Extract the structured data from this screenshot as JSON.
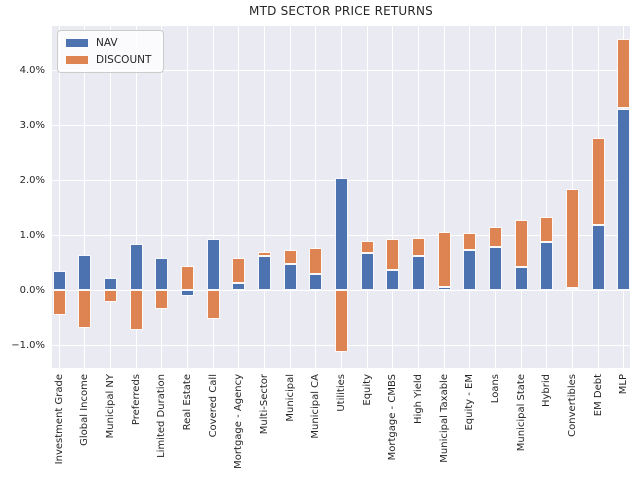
{
  "title": "MTD SECTOR PRICE RETURNS",
  "chart_data": {
    "type": "bar",
    "stacked": true,
    "title": "MTD SECTOR PRICE RETURNS",
    "xlabel": "",
    "ylabel": "",
    "unit": "percent",
    "grid": true,
    "legend_position": "upper left",
    "plot_background": "#EAEAF2",
    "grid_color": "#FFFFFF",
    "text_color": "#262626",
    "categories": [
      "Investment Grade",
      "Global Income",
      "Municipal NY",
      "Preferreds",
      "Limited Duration",
      "Real Estate",
      "Covered Call",
      "Mortgage - Agency",
      "Multi-Sector",
      "Municipal",
      "Municipal CA",
      "Utilities",
      "Equity",
      "Mortgage - CMBS",
      "High Yield",
      "Municipal Taxable",
      "Equity - EM",
      "Loans",
      "Municipal State",
      "Hybrid",
      "Convertibles",
      "EM Debt",
      "MLP"
    ],
    "series": [
      {
        "name": "NAV",
        "color": "#4C72B0",
        "values": [
          0.35,
          0.63,
          0.21,
          0.84,
          0.59,
          -0.11,
          0.92,
          0.12,
          0.62,
          0.47,
          0.29,
          2.03,
          0.67,
          0.36,
          0.62,
          0.06,
          0.73,
          0.78,
          0.42,
          0.88,
          0.04,
          1.18,
          3.3
        ]
      },
      {
        "name": "DISCOUNT",
        "color": "#DD8452",
        "values": [
          -0.46,
          -0.69,
          -0.21,
          -0.73,
          -0.35,
          0.44,
          -0.53,
          0.47,
          0.08,
          0.26,
          0.48,
          -1.13,
          0.23,
          0.57,
          0.33,
          1.0,
          0.3,
          0.37,
          0.85,
          0.44,
          1.79,
          1.58,
          1.26
        ]
      }
    ],
    "y_ticks": [
      {
        "label": "−1.0%",
        "value": -1
      },
      {
        "label": "0.0%",
        "value": 0
      },
      {
        "label": "1.0%",
        "value": 1
      },
      {
        "label": "2.0%",
        "value": 2
      },
      {
        "label": "3.0%",
        "value": 3
      },
      {
        "label": "4.0%",
        "value": 4
      }
    ],
    "ylim": [
      -1.42,
      4.8
    ]
  }
}
